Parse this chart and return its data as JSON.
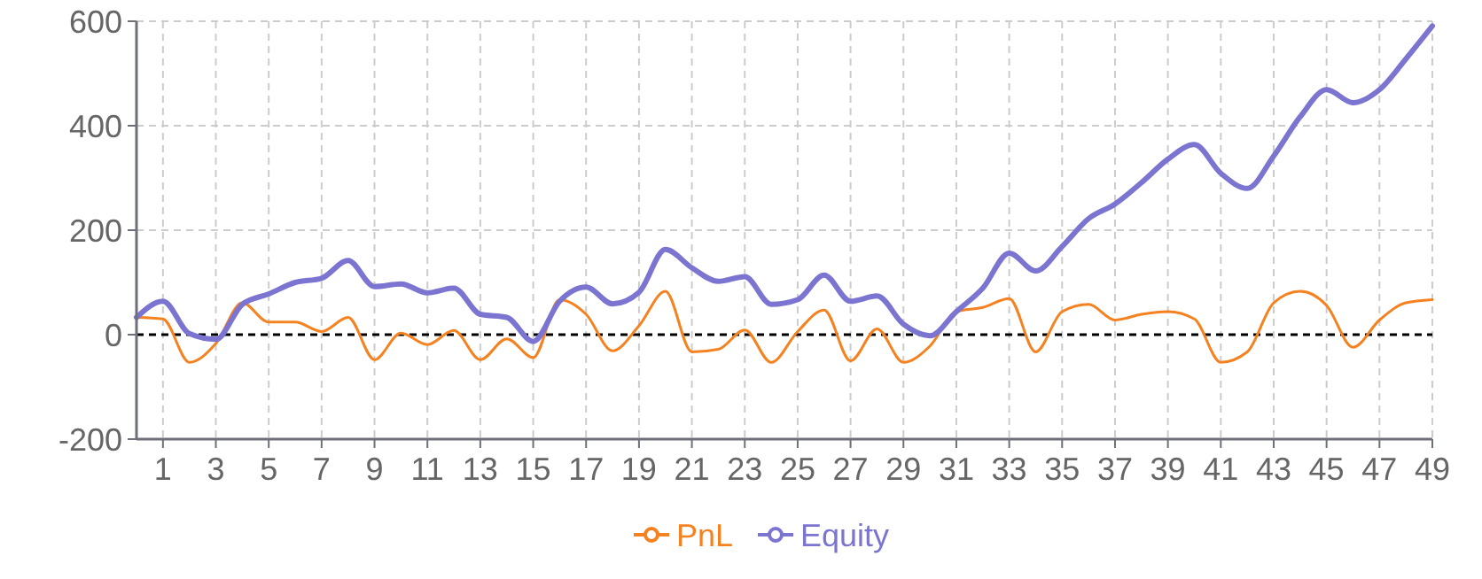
{
  "chart_data": {
    "type": "line",
    "x": [
      0,
      1,
      2,
      3,
      4,
      5,
      6,
      7,
      8,
      9,
      10,
      11,
      12,
      13,
      14,
      15,
      16,
      17,
      18,
      19,
      20,
      21,
      22,
      23,
      24,
      25,
      26,
      27,
      28,
      29,
      30,
      31,
      32,
      33,
      34,
      35,
      36,
      37,
      38,
      39,
      40,
      41,
      42,
      43,
      44,
      45,
      46,
      47,
      48,
      49
    ],
    "xlim": [
      0,
      49
    ],
    "xticks": [
      1,
      3,
      5,
      7,
      9,
      11,
      13,
      15,
      17,
      19,
      21,
      23,
      25,
      27,
      29,
      31,
      33,
      35,
      37,
      39,
      41,
      43,
      45,
      47,
      49
    ],
    "series": [
      {
        "name": "PnL",
        "color": "#f58220",
        "values": [
          33,
          30,
          -53,
          -17,
          61,
          24,
          24,
          6,
          33,
          -48,
          3,
          -19,
          8,
          -48,
          -8,
          -44,
          67,
          39,
          -31,
          17,
          83,
          -33,
          -28,
          9,
          -53,
          6,
          47,
          -50,
          11,
          -53,
          -22,
          44,
          52,
          69,
          -33,
          44,
          58,
          28,
          39,
          44,
          30,
          -53,
          -33,
          61,
          83,
          56,
          -24,
          28,
          61,
          67
        ]
      },
      {
        "name": "Equity",
        "color": "#7b74d0",
        "values": [
          33,
          64,
          2,
          -9,
          58,
          78,
          100,
          108,
          142,
          92,
          97,
          80,
          89,
          39,
          33,
          -13,
          64,
          91,
          59,
          81,
          163,
          128,
          102,
          111,
          58,
          67,
          114,
          64,
          74,
          20,
          -2,
          44,
          89,
          156,
          122,
          169,
          222,
          250,
          291,
          336,
          364,
          309,
          280,
          342,
          417,
          469,
          444,
          469,
          528,
          591
        ]
      }
    ],
    "ylim": [
      -200,
      600
    ],
    "yticks": [
      -200,
      0,
      200,
      400,
      600
    ],
    "grid": true,
    "legend": "bottom",
    "marker": "none",
    "line_style": "solid",
    "ref_lines": [
      {
        "axis": "y",
        "value": 0,
        "color": "#000000",
        "line_style": "dashed"
      }
    ]
  }
}
